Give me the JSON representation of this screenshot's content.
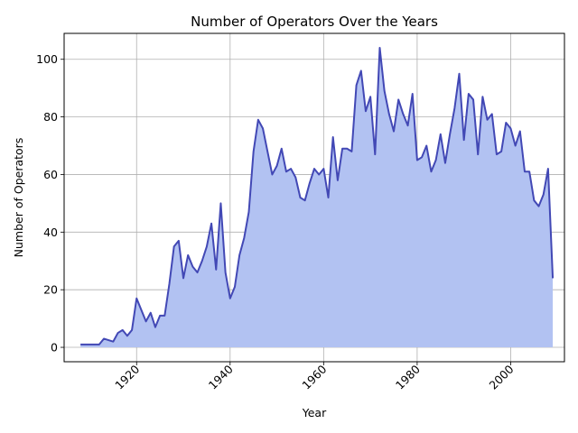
{
  "chart_data": {
    "type": "area",
    "title": "Number of Operators Over the Years",
    "xlabel": "Year",
    "ylabel": "Number of Operators",
    "xlim": [
      1904.5,
      2011.5
    ],
    "ylim": [
      -5,
      109
    ],
    "xticks": [
      1920,
      1940,
      1960,
      1980,
      2000
    ],
    "yticks": [
      0,
      20,
      40,
      60,
      80,
      100
    ],
    "grid": true,
    "line_color": "#4248b5",
    "fill_color": "#b2c2f2",
    "x": [
      1908,
      1909,
      1910,
      1911,
      1912,
      1913,
      1914,
      1915,
      1916,
      1917,
      1918,
      1919,
      1920,
      1921,
      1922,
      1923,
      1924,
      1925,
      1926,
      1927,
      1928,
      1929,
      1930,
      1931,
      1932,
      1933,
      1934,
      1935,
      1936,
      1937,
      1938,
      1939,
      1940,
      1941,
      1942,
      1943,
      1944,
      1945,
      1946,
      1947,
      1948,
      1949,
      1950,
      1951,
      1952,
      1953,
      1954,
      1955,
      1956,
      1957,
      1958,
      1959,
      1960,
      1961,
      1962,
      1963,
      1964,
      1965,
      1966,
      1967,
      1968,
      1969,
      1970,
      1971,
      1972,
      1973,
      1974,
      1975,
      1976,
      1977,
      1978,
      1979,
      1980,
      1981,
      1982,
      1983,
      1984,
      1985,
      1986,
      1987,
      1988,
      1989,
      1990,
      1991,
      1992,
      1993,
      1994,
      1995,
      1996,
      1997,
      1998,
      1999,
      2000,
      2001,
      2002,
      2003,
      2004,
      2005,
      2006,
      2007,
      2008,
      2009
    ],
    "y": [
      1,
      1,
      1,
      1,
      1,
      3,
      2.5,
      2,
      5,
      6,
      4,
      6,
      17,
      13,
      9,
      12,
      7,
      11,
      11,
      22,
      35,
      37,
      24,
      32,
      28,
      26,
      30,
      35,
      43,
      27,
      50,
      26,
      17,
      21,
      32,
      38,
      47,
      68,
      79,
      76,
      68,
      60,
      63,
      69,
      61,
      62,
      59,
      52,
      51,
      57,
      62,
      60,
      62,
      52,
      73,
      58,
      69,
      69,
      68,
      91,
      96,
      82,
      87,
      67,
      104,
      89,
      81,
      75,
      86,
      81,
      77,
      88,
      65,
      66,
      70,
      61,
      65,
      74,
      64,
      74,
      83,
      95,
      72,
      88,
      86,
      67,
      87,
      79,
      81,
      67,
      68,
      78,
      76,
      70,
      75,
      61,
      61,
      51,
      49,
      53,
      62,
      24
    ]
  }
}
